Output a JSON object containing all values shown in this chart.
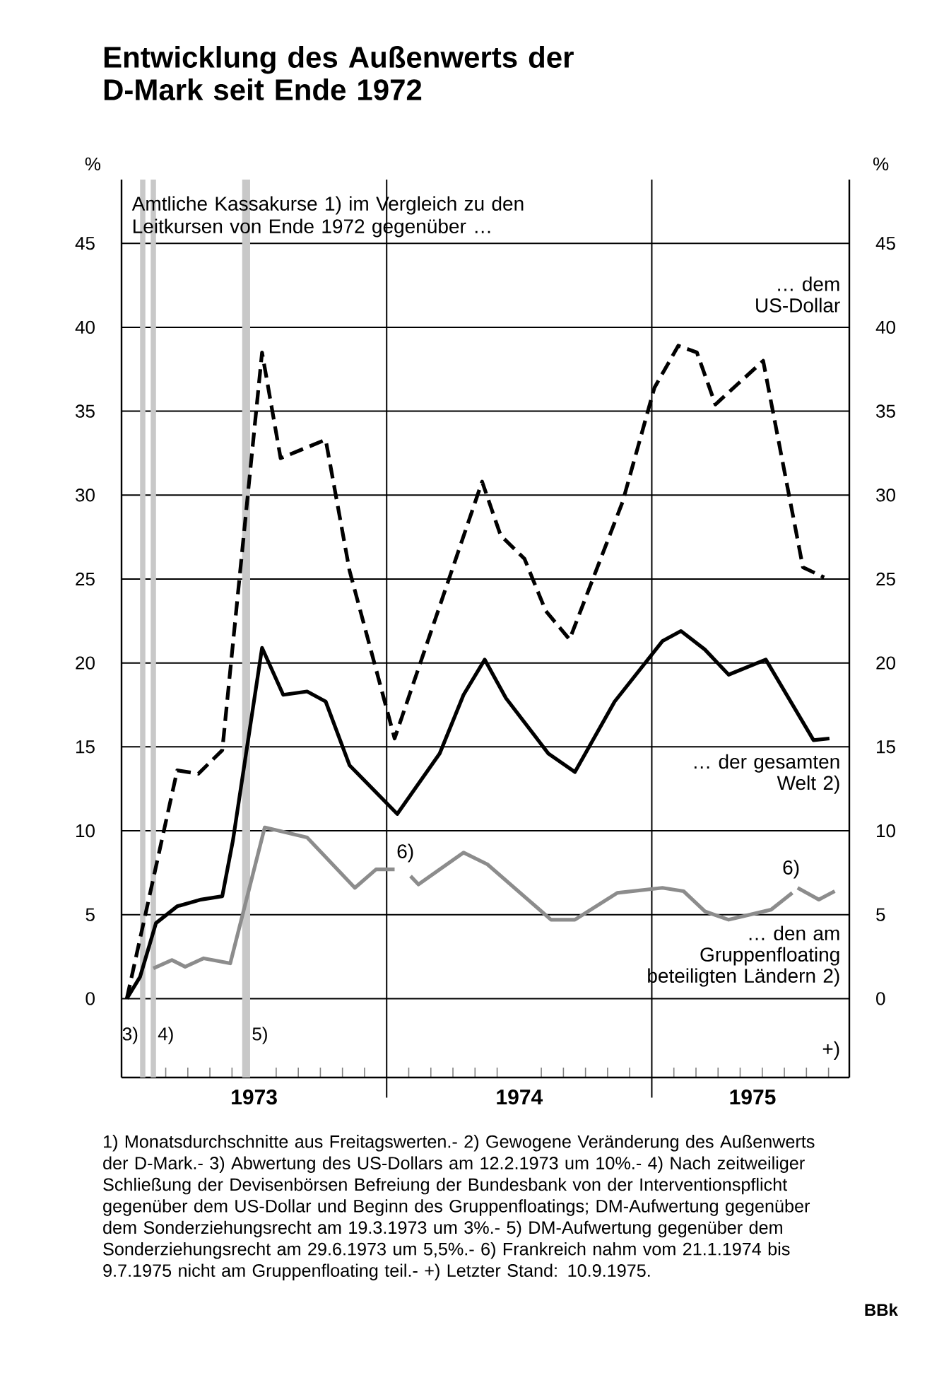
{
  "chart_data": {
    "type": "line",
    "title": "Entwicklung des Außenwerts der D-Mark seit Ende 1972",
    "subtitle": "Amtliche Kassakurse 1) im Vergleich zu den Leitkursen von Ende 1972 gegenüber …",
    "ylabel": "%",
    "y2label": "%",
    "xlim": [
      1973.0,
      1975.745
    ],
    "xticks": [
      {
        "value": 1973.5,
        "label": "1973"
      },
      {
        "value": 1974.5,
        "label": "1974"
      },
      {
        "value": 1975.38,
        "label": "1975"
      },
      {
        "value": 1973.0833,
        "label": null
      },
      {
        "value": 1973.1667,
        "label": null
      },
      {
        "value": 1973.25,
        "label": null
      },
      {
        "value": 1973.3333,
        "label": null
      },
      {
        "value": 1973.4167,
        "label": null
      },
      {
        "value": 1973.5833,
        "label": null
      },
      {
        "value": 1973.6667,
        "label": null
      },
      {
        "value": 1973.75,
        "label": null
      },
      {
        "value": 1973.8333,
        "label": null
      },
      {
        "value": 1973.9167,
        "label": null
      },
      {
        "value": 1974.0833,
        "label": null
      },
      {
        "value": 1974.1667,
        "label": null
      },
      {
        "value": 1974.25,
        "label": null
      },
      {
        "value": 1974.3333,
        "label": null
      },
      {
        "value": 1974.4167,
        "label": null
      },
      {
        "value": 1974.5833,
        "label": null
      },
      {
        "value": 1974.6667,
        "label": null
      },
      {
        "value": 1974.75,
        "label": null
      },
      {
        "value": 1974.8333,
        "label": null
      },
      {
        "value": 1974.9167,
        "label": null
      },
      {
        "value": 1975.0833,
        "label": null
      },
      {
        "value": 1975.1667,
        "label": null
      },
      {
        "value": 1975.25,
        "label": null
      },
      {
        "value": 1975.3333,
        "label": null
      },
      {
        "value": 1975.4167,
        "label": null
      },
      {
        "value": 1975.5,
        "label": null
      },
      {
        "value": 1975.5833,
        "label": null
      },
      {
        "value": 1975.6667,
        "label": null
      }
    ],
    "ylim": [
      -4.7,
      48.8
    ],
    "yticks": [
      0,
      5,
      10,
      15,
      20,
      25,
      30,
      35,
      40,
      45
    ],
    "y2lim": [
      -4.7,
      48.8
    ],
    "y2ticks": [
      0,
      5,
      10,
      15,
      20,
      25,
      30,
      35,
      40,
      45
    ],
    "grid": "y",
    "series": [
      {
        "name": "… dem US-Dollar",
        "color": "#000000",
        "line_style": "dashed",
        "x": [
          1973.02,
          1973.21,
          1973.29,
          1973.38,
          1973.53,
          1973.6,
          1973.77,
          1973.86,
          1974.03,
          1974.36,
          1974.43,
          1974.52,
          1974.6,
          1974.69,
          1974.89,
          1975.01,
          1975.1,
          1975.17,
          1975.24,
          1975.42,
          1975.57,
          1975.65
        ],
        "values": [
          0,
          13.6,
          13.4,
          14.8,
          38.5,
          32.2,
          33.3,
          25.5,
          15.5,
          30.8,
          27.6,
          26.2,
          23.1,
          21.4,
          29.6,
          36.4,
          38.9,
          38.5,
          35.4,
          38.0,
          25.7,
          25.1
        ]
      },
      {
        "name": "… der gesamten Welt 2)",
        "color": "#000000",
        "line_style": "solid",
        "x": [
          1973.02,
          1973.07,
          1973.13,
          1973.21,
          1973.3,
          1973.38,
          1973.42,
          1973.53,
          1973.61,
          1973.7,
          1973.77,
          1973.86,
          1974.04,
          1974.2,
          1974.29,
          1974.37,
          1974.45,
          1974.61,
          1974.71,
          1974.86,
          1975.04,
          1975.11,
          1975.2,
          1975.29,
          1975.43,
          1975.61,
          1975.67
        ],
        "values": [
          0,
          1.3,
          4.5,
          5.5,
          5.9,
          6.1,
          9.4,
          20.9,
          18.1,
          18.3,
          17.7,
          13.9,
          11.0,
          14.6,
          18.1,
          20.2,
          17.9,
          14.6,
          13.5,
          17.7,
          21.3,
          21.9,
          20.8,
          19.3,
          20.2,
          15.4,
          15.5
        ]
      },
      {
        "name": "… den am Gruppenfloating beteiligten Ländern 2)",
        "color": "#8c8c8c",
        "line_style": "solid",
        "x": [
          1973.12,
          1973.19,
          1973.24,
          1973.31,
          1973.41,
          1973.46,
          1973.54,
          1973.7,
          1973.88,
          1973.96,
          1974.03,
          1974.06,
          1974.09,
          1974.12,
          1974.29,
          1974.38,
          1974.62,
          1974.71,
          1974.87,
          1975.04,
          1975.12,
          1975.2,
          1975.29,
          1975.45,
          1975.53,
          1975.54,
          1975.55,
          1975.63,
          1975.69
        ],
        "values": [
          1.8,
          2.3,
          1.9,
          2.4,
          2.1,
          5.2,
          10.2,
          9.6,
          6.6,
          7.7,
          7.7,
          null,
          7.3,
          6.8,
          8.7,
          8.0,
          4.7,
          4.7,
          6.3,
          6.6,
          6.4,
          5.2,
          4.7,
          5.3,
          6.3,
          null,
          6.6,
          5.9,
          6.4
        ]
      }
    ],
    "bands": [
      {
        "axis": "x",
        "from": 1973.07,
        "to": 1973.09,
        "label": "3)",
        "color": "#c8c8c8"
      },
      {
        "axis": "x",
        "from": 1973.11,
        "to": 1973.13,
        "label": "4)",
        "color": "#c8c8c8"
      },
      {
        "axis": "x",
        "from": 1973.455,
        "to": 1973.485,
        "label": "5)",
        "color": "#c8c8c8"
      }
    ],
    "ref_lines": [
      {
        "axis": "x",
        "value": 1974
      },
      {
        "axis": "x",
        "value": 1975
      }
    ],
    "annotations": [
      "6)",
      "6)",
      "+)",
      "1) Monatsdurchschnitte aus Freitagswerten.- 2) Gewogene Veränderung des Außenwerts der D-Mark.- 3) Abwertung des US-Dollars am 12.2.1973 um 10%.- 4) Nach zeitweiliger Schließung der Devisenbörsen Befreiung der Bundesbank von der Interventionspflicht gegenüber dem US-Dollar und Beginn des Gruppenfloatings; DM-Aufwertung gegenüber dem Sonderziehungsrecht am 19.3.1973 um 3%.- 5) DM-Aufwertung gegenüber dem Sonderziehungsrecht am 29.6.1973 um 5,5%.- 6) Frankreich nahm vom 21.1.1974 bis 9.7.1975 nicht am Gruppenfloating teil.- +) Letzter Stand: 10.9.1975.",
      "BBk"
    ]
  }
}
